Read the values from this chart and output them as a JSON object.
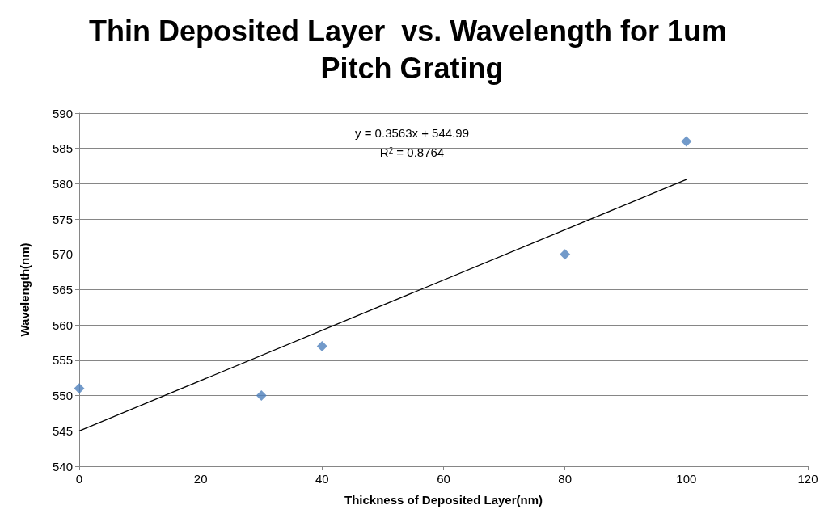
{
  "chart_data": {
    "type": "scatter",
    "title": "Thin Deposited Layer  vs. Wavelength for 1um Pitch Grating",
    "xlabel": "Thickness of Deposited Layer(nm)",
    "ylabel": "Wavelength(nm)",
    "annotations": [
      "y = 0.3563x + 544.99",
      "R$^{2}$ = 0.8764"
    ],
    "series": [
      {
        "color": "#4f81bd",
        "marker": "diamond",
        "x": [
          0,
          30,
          40,
          80,
          100
        ],
        "values": [
          551,
          550,
          557,
          570,
          586
        ]
      },
      {
        "type": "line",
        "color": "#000000",
        "marker": "none",
        "line_style": "solid",
        "x": [
          0,
          100
        ],
        "values": [
          545,
          580.6
        ]
      }
    ],
    "xlim": [
      0,
      120
    ],
    "xticks": [
      0,
      20,
      40,
      60,
      80,
      100,
      120
    ],
    "ylim": [
      540,
      590
    ],
    "yticks": [
      540,
      545,
      550,
      555,
      560,
      565,
      570,
      575,
      580,
      585,
      590
    ],
    "grid": "y"
  }
}
